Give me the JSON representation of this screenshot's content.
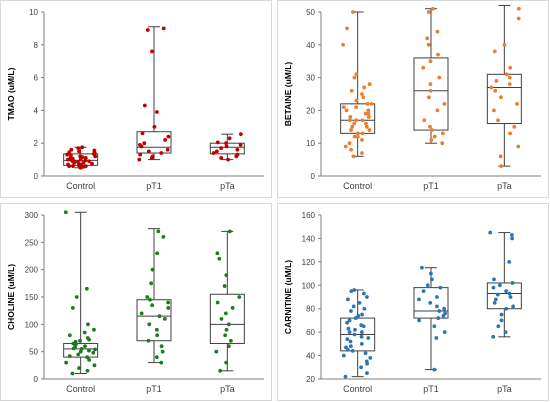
{
  "chart_data": [
    {
      "type": "box",
      "ylabel": "TMAO (uM/L)",
      "ylim": [
        0,
        10
      ],
      "yticks": [
        0,
        2,
        4,
        6,
        8,
        10
      ],
      "categories": [
        "Control",
        "pT1",
        "pTa"
      ],
      "color": "#c00000",
      "boxes": [
        {
          "min": 0.5,
          "q1": 0.65,
          "median": 0.95,
          "q3": 1.35,
          "max": 1.75
        },
        {
          "min": 1.0,
          "q1": 1.4,
          "median": 1.75,
          "q3": 2.7,
          "max": 9.1
        },
        {
          "min": 1.0,
          "q1": 1.35,
          "median": 1.75,
          "q3": 2.0,
          "max": 2.55
        }
      ],
      "points": [
        [
          0.5,
          0.55,
          0.6,
          0.6,
          0.65,
          0.7,
          0.7,
          0.75,
          0.8,
          0.85,
          0.9,
          0.9,
          0.95,
          1.0,
          1.0,
          1.05,
          1.1,
          1.1,
          1.15,
          1.2,
          1.25,
          1.3,
          1.35,
          1.4,
          1.45,
          1.5,
          1.55,
          1.6,
          1.7,
          1.75,
          0.6,
          0.8,
          1.0,
          1.2,
          0.7,
          0.9
        ],
        [
          1.0,
          1.1,
          1.2,
          1.3,
          1.4,
          1.5,
          1.6,
          1.8,
          1.9,
          2.0,
          2.2,
          2.4,
          2.6,
          3.0,
          3.9,
          4.3,
          7.6,
          8.9,
          9.0
        ],
        [
          1.0,
          1.1,
          1.2,
          1.3,
          1.4,
          1.5,
          1.6,
          1.7,
          1.8,
          1.9,
          2.0,
          2.05,
          2.3,
          2.55
        ]
      ]
    },
    {
      "type": "box",
      "ylabel": "BETAINE (uM/L)",
      "ylim": [
        0,
        50
      ],
      "yticks": [
        0,
        10,
        20,
        30,
        40,
        50
      ],
      "categories": [
        "Control",
        "pT1",
        "pTa"
      ],
      "color": "#ed7d31",
      "boxes": [
        {
          "min": 6,
          "q1": 13,
          "median": 17,
          "q3": 22,
          "max": 50
        },
        {
          "min": 10,
          "q1": 14,
          "median": 26,
          "q3": 36,
          "max": 51
        },
        {
          "min": 3,
          "q1": 16,
          "median": 27,
          "q3": 31,
          "max": 52
        }
      ],
      "points": [
        [
          6,
          7,
          8,
          9,
          10,
          11,
          12,
          12,
          13,
          13,
          14,
          14,
          15,
          15,
          16,
          16,
          17,
          17,
          17,
          18,
          18,
          19,
          19,
          20,
          20,
          21,
          21,
          22,
          22,
          23,
          24,
          25,
          26,
          27,
          28,
          30,
          31,
          40,
          45,
          50
        ],
        [
          10,
          11,
          12,
          13,
          14,
          15,
          17,
          20,
          22,
          24,
          26,
          28,
          30,
          33,
          35,
          37,
          40,
          42,
          44,
          50,
          51
        ],
        [
          3,
          6,
          9,
          13,
          15,
          17,
          20,
          22,
          24,
          26,
          27,
          28,
          29,
          30,
          31,
          33,
          38,
          40,
          48,
          51
        ]
      ]
    },
    {
      "type": "box",
      "ylabel": "CHOLINE (uM/L)",
      "ylim": [
        0,
        300
      ],
      "yticks": [
        0,
        50,
        100,
        150,
        200,
        250,
        300
      ],
      "categories": [
        "Control",
        "pT1",
        "pTa"
      ],
      "color": "#1e7b1e",
      "boxes": [
        {
          "min": 10,
          "q1": 40,
          "median": 55,
          "q3": 65,
          "max": 305
        },
        {
          "min": 30,
          "q1": 70,
          "median": 115,
          "q3": 145,
          "max": 275
        },
        {
          "min": 15,
          "q1": 65,
          "median": 100,
          "q3": 155,
          "max": 270
        }
      ],
      "points": [
        [
          10,
          15,
          20,
          25,
          30,
          35,
          40,
          42,
          45,
          48,
          50,
          52,
          54,
          55,
          56,
          58,
          60,
          62,
          64,
          65,
          68,
          70,
          72,
          75,
          80,
          85,
          90,
          100,
          130,
          150,
          165,
          305
        ],
        [
          30,
          40,
          50,
          60,
          70,
          80,
          90,
          100,
          110,
          115,
          120,
          130,
          135,
          140,
          145,
          150,
          175,
          200,
          230,
          260,
          270
        ],
        [
          15,
          30,
          50,
          60,
          70,
          80,
          90,
          100,
          110,
          120,
          130,
          140,
          150,
          170,
          190,
          220,
          230,
          270
        ]
      ]
    },
    {
      "type": "box",
      "ylabel": "CARNITINE (uM/L)",
      "ylim": [
        20,
        160
      ],
      "yticks": [
        20,
        40,
        60,
        80,
        100,
        120,
        140,
        160
      ],
      "categories": [
        "Control",
        "pT1",
        "pTa"
      ],
      "color": "#2e75b6",
      "boxes": [
        {
          "min": 22,
          "q1": 44,
          "median": 58,
          "q3": 72,
          "max": 96
        },
        {
          "min": 28,
          "q1": 72,
          "median": 78,
          "q3": 98,
          "max": 115
        },
        {
          "min": 56,
          "q1": 80,
          "median": 93,
          "q3": 102,
          "max": 145
        }
      ],
      "points": [
        [
          22,
          25,
          30,
          33,
          35,
          38,
          40,
          42,
          44,
          45,
          47,
          48,
          50,
          52,
          54,
          55,
          56,
          58,
          60,
          60,
          62,
          63,
          65,
          66,
          68,
          70,
          72,
          74,
          75,
          78,
          80,
          82,
          85,
          88,
          90,
          93,
          95,
          96
        ],
        [
          28,
          55,
          60,
          65,
          70,
          72,
          74,
          76,
          78,
          80,
          82,
          85,
          88,
          90,
          95,
          98,
          100,
          105,
          110,
          115
        ],
        [
          56,
          60,
          65,
          70,
          75,
          80,
          82,
          85,
          88,
          90,
          92,
          93,
          95,
          98,
          100,
          102,
          105,
          120,
          140,
          143,
          145
        ]
      ]
    }
  ]
}
